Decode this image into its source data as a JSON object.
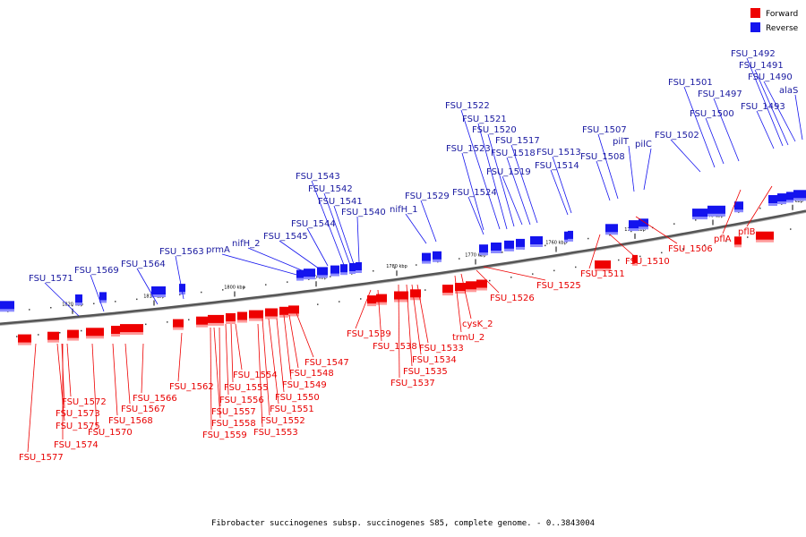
{
  "caption": "Fibrobacter succinogenes subsp. succinogenes S85, complete genome. - 0..3843004",
  "legend": {
    "forward_label": "Forward",
    "reverse_label": "Reverse",
    "forward_color": "#ee0000",
    "reverse_color": "#1414ee"
  },
  "ticks": [
    "1730 kbp",
    "1740 kbp",
    "1750 kbp",
    "1760 kbp",
    "1770 kbp",
    "1780 kbp",
    "1790 kbp",
    "1800 kbp",
    "1810 kbp",
    "1820 kbp"
  ],
  "forward_genes": [
    "FSU_1577",
    "FSU_1575",
    "FSU_1574",
    "FSU_1573",
    "FSU_1572",
    "FSU_1570",
    "FSU_1568",
    "FSU_1567",
    "FSU_1566",
    "FSU_1562",
    "FSU_1559",
    "FSU_1558",
    "FSU_1557",
    "FSU_1556",
    "FSU_1555",
    "FSU_1554",
    "FSU_1553",
    "FSU_1552",
    "FSU_1551",
    "FSU_1550",
    "FSU_1549",
    "FSU_1548",
    "FSU_1547",
    "FSU_1539",
    "FSU_1538",
    "FSU_1537",
    "FSU_1535",
    "FSU_1534",
    "FSU_1533",
    "trmU_2",
    "cysK_2",
    "FSU_1526",
    "FSU_1525",
    "FSU_1511",
    "FSU_1510",
    "FSU_1506",
    "pflA",
    "pflB"
  ],
  "reverse_genes": [
    "FSU_1571",
    "FSU_1569",
    "FSU_1564",
    "FSU_1563",
    "prmA",
    "nifH_2",
    "FSU_1545",
    "FSU_1544",
    "FSU_1543",
    "FSU_1542",
    "FSU_1541",
    "FSU_1540",
    "nifH_1",
    "FSU_1529",
    "FSU_1524",
    "FSU_1523",
    "FSU_1522",
    "FSU_1521",
    "FSU_1520",
    "FSU_1519",
    "FSU_1518",
    "FSU_1517",
    "FSU_1514",
    "FSU_1513",
    "FSU_1508",
    "FSU_1507",
    "pilT",
    "pilC",
    "FSU_1502",
    "FSU_1501",
    "FSU_1500",
    "FSU_1497",
    "FSU_1493",
    "FSU_1492",
    "FSU_1491",
    "FSU_1490",
    "alaS"
  ]
}
